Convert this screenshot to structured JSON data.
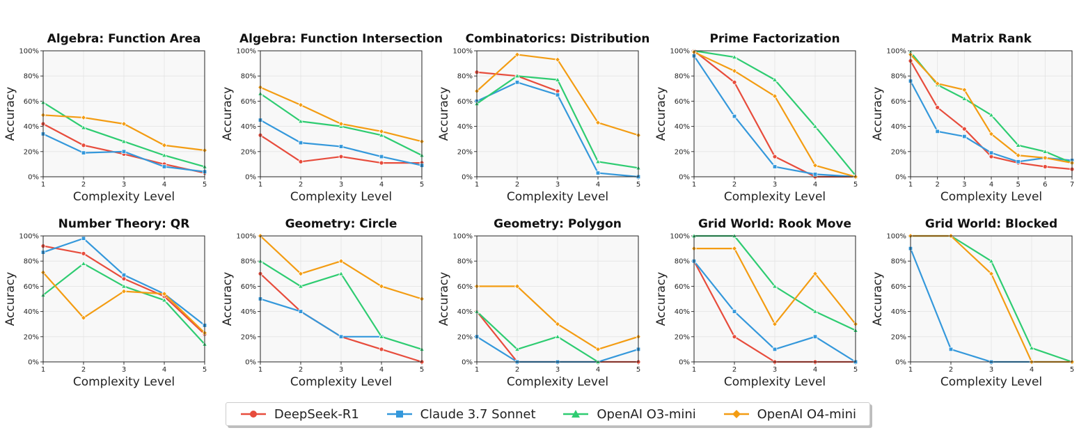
{
  "legend": {
    "items": [
      {
        "label": "DeepSeek-R1",
        "color": "#e74c3c",
        "marker": "circle"
      },
      {
        "label": "Claude 3.7 Sonnet",
        "color": "#3498db",
        "marker": "square"
      },
      {
        "label": "OpenAI O3-mini",
        "color": "#2ecc71",
        "marker": "triangle"
      },
      {
        "label": "OpenAI O4-mini",
        "color": "#f39c12",
        "marker": "diamond"
      }
    ]
  },
  "chart_data": [
    {
      "type": "line",
      "title": "Algebra: Function Area",
      "xlabel": "Complexity Level",
      "ylabel": "Accuracy",
      "x": [
        1,
        2,
        3,
        4,
        5
      ],
      "ylim": [
        0,
        100
      ],
      "yticks": [
        "0%",
        "20%",
        "40%",
        "60%",
        "80%",
        "100%"
      ],
      "series": [
        {
          "name": "DeepSeek-R1",
          "values": [
            42,
            25,
            18,
            10,
            3
          ]
        },
        {
          "name": "Claude 3.7 Sonnet",
          "values": [
            34,
            19,
            20,
            8,
            4
          ]
        },
        {
          "name": "OpenAI O3-mini",
          "values": [
            59,
            39,
            28,
            17,
            8
          ]
        },
        {
          "name": "OpenAI O4-mini",
          "values": [
            49,
            47,
            42,
            25,
            21
          ]
        }
      ]
    },
    {
      "type": "line",
      "title": "Algebra: Function Intersection",
      "xlabel": "Complexity Level",
      "ylabel": "Accuracy",
      "x": [
        1,
        2,
        3,
        4,
        5
      ],
      "ylim": [
        0,
        100
      ],
      "yticks": [
        "0%",
        "20%",
        "40%",
        "60%",
        "80%",
        "100%"
      ],
      "series": [
        {
          "name": "DeepSeek-R1",
          "values": [
            33,
            12,
            16,
            11,
            11
          ]
        },
        {
          "name": "Claude 3.7 Sonnet",
          "values": [
            45,
            27,
            24,
            16,
            9
          ]
        },
        {
          "name": "OpenAI O3-mini",
          "values": [
            66,
            44,
            40,
            33,
            17
          ]
        },
        {
          "name": "OpenAI O4-mini",
          "values": [
            71,
            57,
            42,
            36,
            28
          ]
        }
      ]
    },
    {
      "type": "line",
      "title": "Combinatorics: Distribution",
      "xlabel": "Complexity Level",
      "ylabel": "Accuracy",
      "x": [
        1,
        2,
        3,
        4,
        5
      ],
      "ylim": [
        0,
        100
      ],
      "yticks": [
        "0%",
        "20%",
        "40%",
        "60%",
        "80%",
        "100%"
      ],
      "series": [
        {
          "name": "DeepSeek-R1",
          "values": [
            83,
            80,
            68,
            null,
            null
          ]
        },
        {
          "name": "Claude 3.7 Sonnet",
          "values": [
            60,
            75,
            65,
            3,
            0
          ]
        },
        {
          "name": "OpenAI O3-mini",
          "values": [
            58,
            80,
            77,
            12,
            7
          ]
        },
        {
          "name": "OpenAI O4-mini",
          "values": [
            68,
            97,
            93,
            43,
            33
          ]
        }
      ]
    },
    {
      "type": "line",
      "title": "Prime Factorization",
      "xlabel": "Complexity Level",
      "ylabel": "Accuracy",
      "x": [
        1,
        2,
        3,
        4,
        5
      ],
      "ylim": [
        0,
        100
      ],
      "yticks": [
        "0%",
        "20%",
        "40%",
        "60%",
        "80%",
        "100%"
      ],
      "series": [
        {
          "name": "DeepSeek-R1",
          "values": [
            100,
            75,
            16,
            0,
            0
          ]
        },
        {
          "name": "Claude 3.7 Sonnet",
          "values": [
            96,
            48,
            8,
            2,
            0
          ]
        },
        {
          "name": "OpenAI O3-mini",
          "values": [
            100,
            95,
            77,
            40,
            1
          ]
        },
        {
          "name": "OpenAI O4-mini",
          "values": [
            99,
            84,
            64,
            9,
            0
          ]
        }
      ]
    },
    {
      "type": "line",
      "title": "Matrix Rank",
      "xlabel": "Complexity Level",
      "ylabel": "Accuracy",
      "x": [
        1,
        2,
        3,
        4,
        5,
        6,
        7
      ],
      "ylim": [
        0,
        100
      ],
      "yticks": [
        "0%",
        "20%",
        "40%",
        "60%",
        "80%",
        "100%"
      ],
      "series": [
        {
          "name": "DeepSeek-R1",
          "values": [
            92,
            55,
            38,
            16,
            11,
            8,
            6
          ]
        },
        {
          "name": "Claude 3.7 Sonnet",
          "values": [
            76,
            36,
            32,
            19,
            12,
            15,
            13
          ]
        },
        {
          "name": "OpenAI O3-mini",
          "values": [
            99,
            73,
            62,
            49,
            25,
            20,
            11
          ]
        },
        {
          "name": "OpenAI O4-mini",
          "values": [
            97,
            74,
            69,
            34,
            17,
            15,
            11
          ]
        }
      ]
    },
    {
      "type": "line",
      "title": "Number Theory: QR",
      "xlabel": "Complexity Level",
      "ylabel": "Accuracy",
      "x": [
        1,
        2,
        3,
        4,
        5
      ],
      "ylim": [
        0,
        100
      ],
      "yticks": [
        "0%",
        "20%",
        "40%",
        "60%",
        "80%",
        "100%"
      ],
      "series": [
        {
          "name": "DeepSeek-R1",
          "values": [
            92,
            86,
            66,
            52,
            22
          ]
        },
        {
          "name": "Claude 3.7 Sonnet",
          "values": [
            87,
            98,
            69,
            54,
            29
          ]
        },
        {
          "name": "OpenAI O3-mini",
          "values": [
            53,
            78,
            60,
            49,
            14
          ]
        },
        {
          "name": "OpenAI O4-mini",
          "values": [
            71,
            35,
            56,
            54,
            23
          ]
        }
      ]
    },
    {
      "type": "line",
      "title": "Geometry: Circle",
      "xlabel": "Complexity Level",
      "ylabel": "Accuracy",
      "x": [
        1,
        2,
        3,
        4,
        5
      ],
      "ylim": [
        0,
        100
      ],
      "yticks": [
        "0%",
        "20%",
        "40%",
        "60%",
        "80%",
        "100%"
      ],
      "series": [
        {
          "name": "DeepSeek-R1",
          "values": [
            70,
            40,
            20,
            10,
            0
          ]
        },
        {
          "name": "Claude 3.7 Sonnet",
          "values": [
            50,
            40,
            20,
            20,
            null
          ]
        },
        {
          "name": "OpenAI O3-mini",
          "values": [
            80,
            60,
            70,
            20,
            10
          ]
        },
        {
          "name": "OpenAI O4-mini",
          "values": [
            100,
            70,
            80,
            60,
            50
          ]
        }
      ]
    },
    {
      "type": "line",
      "title": "Geometry: Polygon",
      "xlabel": "Complexity Level",
      "ylabel": "Accuracy",
      "x": [
        1,
        2,
        3,
        4,
        5
      ],
      "ylim": [
        0,
        100
      ],
      "yticks": [
        "0%",
        "20%",
        "40%",
        "60%",
        "80%",
        "100%"
      ],
      "series": [
        {
          "name": "DeepSeek-R1",
          "values": [
            40,
            0,
            0,
            0,
            0
          ]
        },
        {
          "name": "Claude 3.7 Sonnet",
          "values": [
            20,
            0,
            0,
            0,
            10
          ]
        },
        {
          "name": "OpenAI O3-mini",
          "values": [
            40,
            10,
            20,
            0,
            null
          ]
        },
        {
          "name": "OpenAI O4-mini",
          "values": [
            60,
            60,
            30,
            10,
            20
          ]
        }
      ]
    },
    {
      "type": "line",
      "title": "Grid World: Rook Move",
      "xlabel": "Complexity Level",
      "ylabel": "Accuracy",
      "x": [
        1,
        2,
        3,
        4,
        5
      ],
      "ylim": [
        0,
        100
      ],
      "yticks": [
        "0%",
        "20%",
        "40%",
        "60%",
        "80%",
        "100%"
      ],
      "series": [
        {
          "name": "DeepSeek-R1",
          "values": [
            80,
            20,
            0,
            0,
            0
          ]
        },
        {
          "name": "Claude 3.7 Sonnet",
          "values": [
            80,
            40,
            10,
            20,
            0
          ]
        },
        {
          "name": "OpenAI O3-mini",
          "values": [
            100,
            100,
            60,
            40,
            25
          ]
        },
        {
          "name": "OpenAI O4-mini",
          "values": [
            90,
            90,
            30,
            70,
            30
          ]
        }
      ]
    },
    {
      "type": "line",
      "title": "Grid World: Blocked",
      "xlabel": "Complexity Level",
      "ylabel": "Accuracy",
      "x": [
        1,
        2,
        3,
        4,
        5
      ],
      "ylim": [
        0,
        100
      ],
      "yticks": [
        "0%",
        "20%",
        "40%",
        "60%",
        "80%",
        "100%"
      ],
      "series": [
        {
          "name": "DeepSeek-R1",
          "values": [
            null,
            null,
            null,
            null,
            null
          ]
        },
        {
          "name": "Claude 3.7 Sonnet",
          "values": [
            90,
            10,
            0,
            0,
            0
          ]
        },
        {
          "name": "OpenAI O3-mini",
          "values": [
            100,
            100,
            80,
            11,
            0
          ]
        },
        {
          "name": "OpenAI O4-mini",
          "values": [
            100,
            100,
            70,
            0,
            0
          ]
        }
      ]
    }
  ]
}
